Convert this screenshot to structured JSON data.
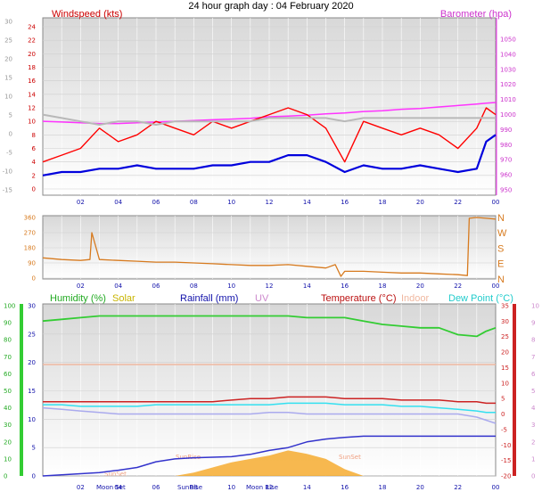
{
  "title": "24 hour graph day : 04 February 2020",
  "hour_labels": [
    "02",
    "04",
    "06",
    "08",
    "10",
    "12",
    "14",
    "16",
    "18",
    "20",
    "22",
    "00"
  ],
  "wind_panel": {
    "left_label": "Windspeed (kts)",
    "right_label": "Barometer (hpa)",
    "outer_left_ticks": [
      "30",
      "25",
      "20",
      "15",
      "10",
      "5",
      "0",
      "-5",
      "-10",
      "-15"
    ],
    "left_ticks": [
      "24",
      "22",
      "20",
      "18",
      "16",
      "14",
      "12",
      "10",
      "8",
      "6",
      "4",
      "2",
      "0"
    ],
    "right_ticks": [
      "1050",
      "1040",
      "1030",
      "1020",
      "1010",
      "1000",
      "990",
      "980",
      "970",
      "960",
      "950"
    ]
  },
  "dir_panel": {
    "left_ticks": [
      "360",
      "270",
      "180",
      "90",
      "0"
    ],
    "right_labels": [
      "N",
      "W",
      "S",
      "E",
      "N"
    ]
  },
  "bottom_panel": {
    "legend": {
      "humidity": "Humidity (%)",
      "solar": "Solar",
      "rainfall": "Rainfall (mm)",
      "uv": "UV",
      "temperature": "Temperature (°C)",
      "indoor": "Indoor",
      "dewpoint": "Dew Point (°C)"
    },
    "humidity_ticks": [
      "100",
      "90",
      "80",
      "70",
      "60",
      "50",
      "40",
      "30",
      "20",
      "10",
      "0"
    ],
    "rain_ticks": [
      "30",
      "25",
      "20",
      "15",
      "10",
      "5",
      "0"
    ],
    "right_inner_ticks": [
      "35",
      "30",
      "25",
      "20",
      "15",
      "10",
      "5",
      "0",
      "-5",
      "-10",
      "-15",
      "-20"
    ],
    "right_outer_ticks": [
      "10",
      "9",
      "8",
      "7",
      "6",
      "5",
      "4",
      "3",
      "2",
      "1",
      "0"
    ],
    "moon_set_1": "Moon Set",
    "moon_rise_1": "Moon Rise",
    "moon_set_2": "Moon Set",
    "sunrise_1": "SunRise",
    "sunrise_2": "SunRise",
    "sunset_1": "SunSet",
    "sunset_2": "SunSet"
  },
  "colors": {
    "wind_gust": "#ff0000",
    "wind_avg": "#0000dd",
    "barometer": "#ff33ff",
    "gray_series": "#b8b8b8",
    "direction": "#d77a1e",
    "humidity": "#33cc33",
    "rainfall": "#3333cc",
    "temperature": "#cc2222",
    "indoor": "#f0b8a0",
    "dewpoint": "#33e0f0",
    "uv": "#aaaaee",
    "solar": "#f5a623"
  },
  "chart_data": [
    {
      "type": "line",
      "x_hours": [
        0,
        1,
        2,
        3,
        4,
        5,
        6,
        7,
        8,
        9,
        10,
        11,
        12,
        13,
        14,
        15,
        16,
        17,
        18,
        19,
        20,
        21,
        22,
        23,
        23.5,
        24
      ],
      "ylim_left": [
        0,
        24
      ],
      "ylim_right": [
        950,
        1050
      ],
      "series": [
        {
          "name": "Barometer (hpa)",
          "axis": "right",
          "values": [
            995.5,
            995,
            994.5,
            994,
            994,
            994.5,
            995,
            995.5,
            996,
            996.5,
            997,
            997.5,
            998.5,
            999,
            999.5,
            1000.5,
            1001,
            1002,
            1002.5,
            1003.5,
            1004,
            1005,
            1006,
            1007,
            1007.5,
            1008
          ]
        },
        {
          "name": "Windspeed (kts)",
          "role": "gust",
          "axis": "left",
          "values": [
            4,
            5,
            6,
            9,
            7,
            8,
            10,
            9,
            8,
            10,
            9,
            10,
            11,
            12,
            11,
            9,
            4,
            10,
            9,
            8,
            9,
            8,
            6,
            9,
            12,
            11
          ]
        },
        {
          "name": "Windspeed (kts)",
          "role": "average",
          "axis": "left",
          "values": [
            2,
            2.5,
            2.5,
            3,
            3,
            3.5,
            3,
            3,
            3,
            3.5,
            3.5,
            4,
            4,
            5,
            5,
            4,
            2.5,
            3.5,
            3,
            3,
            3.5,
            3,
            2.5,
            3,
            7,
            8
          ]
        },
        {
          "role": "gray",
          "axis": "left",
          "values": [
            11,
            10.5,
            10,
            9.5,
            10,
            10,
            9.5,
            10,
            10,
            10,
            10,
            10,
            10.5,
            10.5,
            10.5,
            10.5,
            10,
            10.5,
            10.5,
            10.5,
            10.5,
            10.5,
            10.5,
            10.5,
            10.5,
            10.5
          ]
        }
      ]
    },
    {
      "type": "line",
      "x_hours": [
        0,
        1,
        2,
        2.5,
        2.6,
        3,
        4,
        5,
        6,
        7,
        8,
        9,
        10,
        11,
        12,
        13,
        14,
        15,
        15.5,
        15.8,
        16,
        17,
        18,
        19,
        20,
        21,
        22,
        22.5,
        22.6,
        23,
        23.5,
        24
      ],
      "ylim": [
        0,
        360
      ],
      "series": [
        {
          "name": "Wind Direction",
          "values": [
            120,
            110,
            105,
            110,
            270,
            110,
            105,
            100,
            95,
            95,
            90,
            85,
            80,
            75,
            75,
            80,
            70,
            60,
            80,
            10,
            40,
            40,
            35,
            30,
            30,
            25,
            20,
            15,
            355,
            360,
            355,
            350
          ]
        }
      ]
    },
    {
      "type": "line",
      "x_hours": [
        0,
        1,
        2,
        3,
        4,
        5,
        6,
        7,
        8,
        9,
        10,
        11,
        12,
        13,
        14,
        15,
        16,
        17,
        18,
        19,
        20,
        21,
        22,
        23,
        23.5,
        24
      ],
      "ylim_humidity": [
        0,
        100
      ],
      "ylim_rain": [
        0,
        30
      ],
      "ylim_temp": [
        -20,
        35
      ],
      "ylim_uv": [
        0,
        10
      ],
      "series": [
        {
          "name": "Humidity (%)",
          "axis": "humidity",
          "values": [
            91,
            92,
            93,
            94,
            94,
            94,
            94,
            94,
            94,
            94,
            94,
            94,
            94,
            94,
            93,
            93,
            93,
            91,
            89,
            88,
            87,
            87,
            83,
            82,
            85,
            87
          ]
        },
        {
          "name": "Rainfall (mm)",
          "axis": "rain",
          "values": [
            0,
            0.2,
            0.4,
            0.6,
            1,
            1.5,
            2.5,
            3,
            3.2,
            3.3,
            3.4,
            3.8,
            4.5,
            5,
            6,
            6.5,
            6.8,
            7,
            7,
            7,
            7,
            7,
            7,
            7,
            7,
            7
          ]
        },
        {
          "name": "Temperature (°C)",
          "axis": "temp",
          "values": [
            4,
            4,
            4,
            4,
            4,
            4,
            4,
            4,
            4,
            4,
            4.5,
            5,
            5,
            5.5,
            5.5,
            5.5,
            5,
            5,
            5,
            4.5,
            4.5,
            4.5,
            4,
            4,
            3.5,
            3.5
          ]
        },
        {
          "name": "Indoor",
          "axis": "temp",
          "values": [
            16,
            16,
            16,
            16,
            16,
            16,
            16,
            16,
            16,
            16,
            16,
            16,
            16,
            16,
            16,
            16,
            16,
            16,
            16,
            16,
            16,
            16,
            16,
            16,
            16,
            16
          ]
        },
        {
          "name": "Dew Point (°C)",
          "axis": "temp",
          "values": [
            3,
            3,
            2.5,
            2.5,
            2.5,
            2.5,
            3,
            3,
            3,
            3,
            3,
            3,
            3,
            3.5,
            3.5,
            3.5,
            3,
            3,
            3,
            2.5,
            2.5,
            2,
            1.5,
            1,
            0.5,
            0.5
          ]
        },
        {
          "name": "UV",
          "axis": "temp",
          "values": [
            2,
            1.5,
            1,
            0.5,
            0,
            0,
            0,
            0,
            0,
            0,
            0,
            0,
            0.5,
            0.5,
            0,
            0,
            0,
            0,
            0,
            0,
            0,
            0,
            0,
            -1,
            -2,
            -3
          ]
        },
        {
          "name": "Solar",
          "axis": "uv",
          "values": [
            0,
            0,
            0,
            0,
            0,
            0,
            0,
            0,
            0.2,
            0.5,
            0.8,
            1,
            1.2,
            1.5,
            1.3,
            1.0,
            0.4,
            0,
            0,
            0,
            0,
            0,
            0,
            0,
            0,
            0
          ]
        }
      ]
    }
  ]
}
